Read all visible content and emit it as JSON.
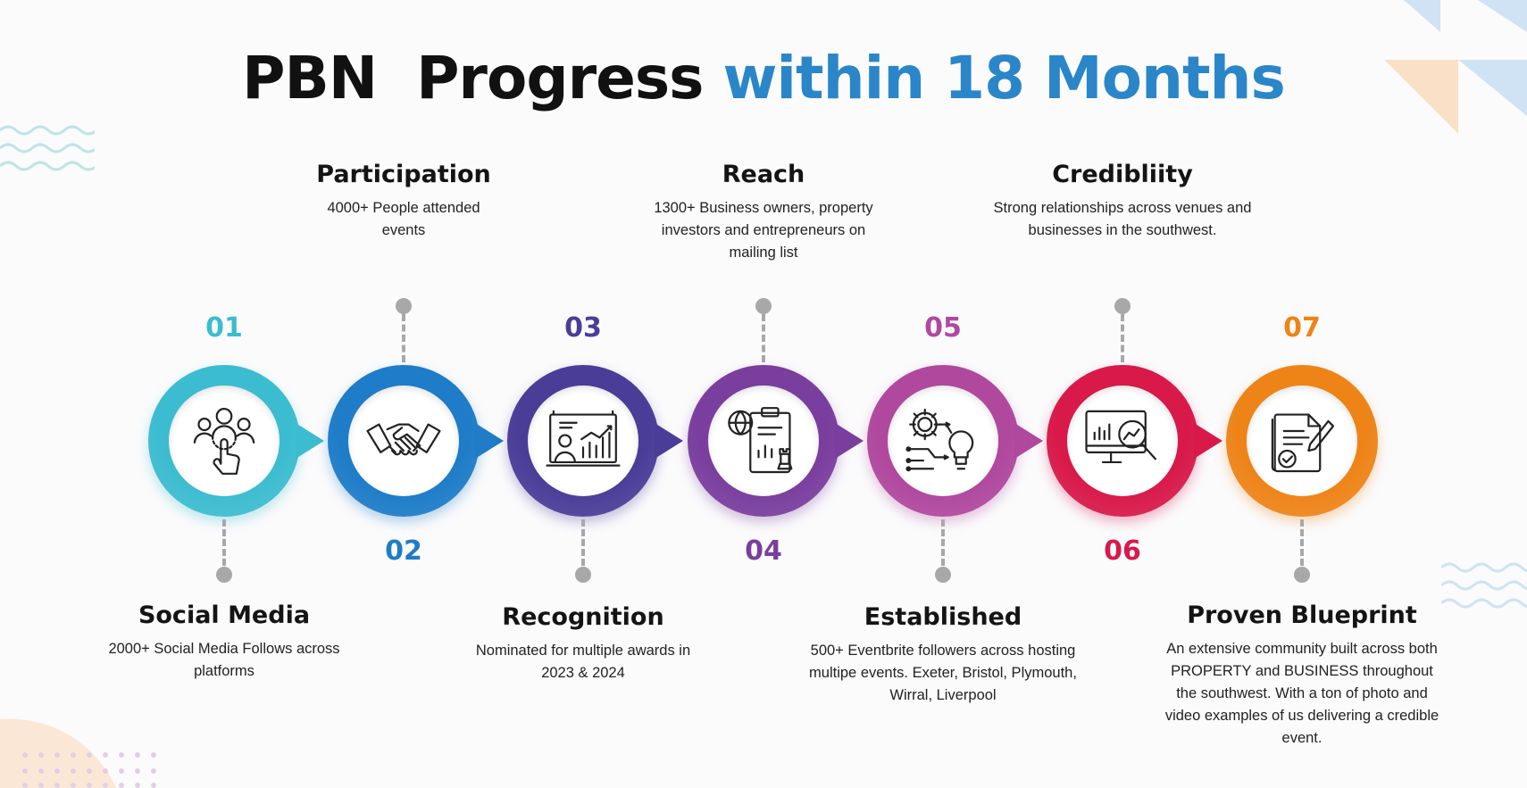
{
  "title": {
    "part1": "PBN",
    "part2": "Progress",
    "part3": "within 18 Months"
  },
  "steps": [
    {
      "number": "01",
      "title": "Social Media",
      "text": "2000+ Social Media Follows across platforms",
      "color": "#3cbcd0",
      "icon": "social-media-icon"
    },
    {
      "number": "02",
      "title": "Participation",
      "text": "4000+ People attended events",
      "color": "#1e7cc8",
      "icon": "handshake-icon"
    },
    {
      "number": "03",
      "title": "Recognition",
      "text": "Nominated for multiple awards in 2023 & 2024",
      "color": "#4a3d98",
      "icon": "presentation-chart-icon"
    },
    {
      "number": "04",
      "title": "Reach",
      "text": "1300+ Business owners, property investors and entrepreneurs on mailing list",
      "color": "#7a3e9e",
      "icon": "strategy-clipboard-icon"
    },
    {
      "number": "05",
      "title": "Established",
      "text": "500+ Eventbrite followers across hosting multipe events. Exeter, Bristol, Plymouth, Wirral, Liverpool",
      "color": "#b0489e",
      "icon": "gear-bulb-icon"
    },
    {
      "number": "06",
      "title": "Credibliity",
      "text": "Strong relationships across venues and businesses in the southwest.",
      "color": "#d8194a",
      "icon": "analytics-monitor-icon"
    },
    {
      "number": "07",
      "title": "Proven Blueprint",
      "text": "An extensive community built across both PROPERTY and BUSINESS throughout the southwest. With a ton of photo and video examples of us delivering a credible event.",
      "color": "#ee8418",
      "icon": "document-check-icon"
    }
  ]
}
